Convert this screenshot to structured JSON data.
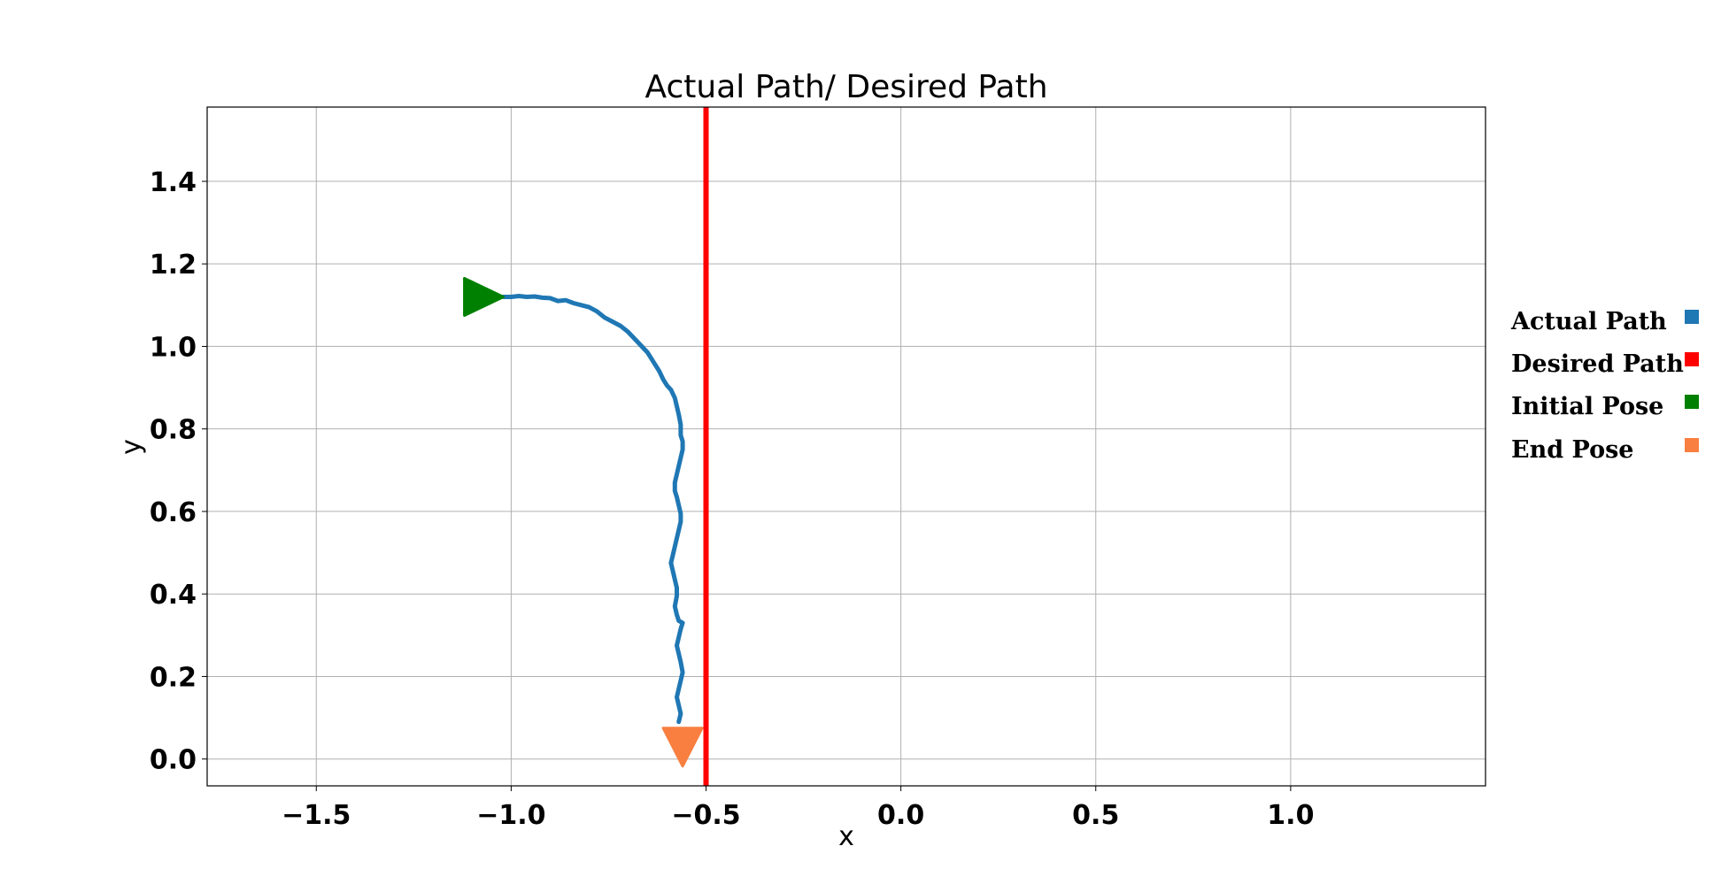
{
  "chart_data": {
    "type": "line",
    "title": "Actual Path/ Desired Path",
    "xlabel": "x",
    "ylabel": "y",
    "xlim": [
      -1.78,
      1.5
    ],
    "ylim": [
      -0.065,
      1.58
    ],
    "xticks": [
      -1.5,
      -1.0,
      -0.5,
      0.0,
      0.5,
      1.0
    ],
    "xtick_labels": [
      "−1.5",
      "−1.0",
      "−0.5",
      "0.0",
      "0.5",
      "1.0"
    ],
    "yticks": [
      0.0,
      0.2,
      0.4,
      0.6,
      0.8,
      1.0,
      1.2,
      1.4
    ],
    "ytick_labels": [
      "0.0",
      "0.2",
      "0.4",
      "0.6",
      "0.8",
      "1.0",
      "1.2",
      "1.4"
    ],
    "grid": true,
    "legend_position": "right",
    "series": [
      {
        "name": "Actual Path",
        "color": "#1f77b4",
        "x": [
          -1.02,
          -1.0,
          -0.98,
          -0.96,
          -0.94,
          -0.92,
          -0.9,
          -0.88,
          -0.86,
          -0.84,
          -0.82,
          -0.8,
          -0.78,
          -0.76,
          -0.74,
          -0.72,
          -0.7,
          -0.68,
          -0.665,
          -0.65,
          -0.64,
          -0.63,
          -0.62,
          -0.61,
          -0.6,
          -0.59,
          -0.58,
          -0.575,
          -0.57,
          -0.565,
          -0.565,
          -0.56,
          -0.56,
          -0.565,
          -0.57,
          -0.575,
          -0.58,
          -0.58,
          -0.575,
          -0.57,
          -0.565,
          -0.565,
          -0.57,
          -0.575,
          -0.58,
          -0.585,
          -0.59,
          -0.585,
          -0.58,
          -0.575,
          -0.575,
          -0.58,
          -0.575,
          -0.57,
          -0.56,
          -0.565,
          -0.57,
          -0.575,
          -0.57,
          -0.565,
          -0.56,
          -0.565,
          -0.57,
          -0.575,
          -0.57,
          -0.565,
          -0.57
        ],
        "y": [
          1.12,
          1.12,
          1.122,
          1.12,
          1.121,
          1.118,
          1.117,
          1.11,
          1.112,
          1.105,
          1.1,
          1.095,
          1.085,
          1.07,
          1.06,
          1.05,
          1.035,
          1.015,
          1.0,
          0.985,
          0.97,
          0.955,
          0.94,
          0.92,
          0.905,
          0.895,
          0.875,
          0.855,
          0.835,
          0.81,
          0.785,
          0.77,
          0.75,
          0.73,
          0.71,
          0.69,
          0.67,
          0.65,
          0.635,
          0.615,
          0.595,
          0.575,
          0.555,
          0.535,
          0.515,
          0.495,
          0.475,
          0.455,
          0.435,
          0.415,
          0.395,
          0.37,
          0.35,
          0.335,
          0.33,
          0.315,
          0.295,
          0.275,
          0.255,
          0.235,
          0.21,
          0.19,
          0.17,
          0.15,
          0.13,
          0.11,
          0.09
        ]
      },
      {
        "name": "Desired Path",
        "color": "#ff0000",
        "x": [
          -0.5,
          -0.5
        ],
        "y": [
          -0.065,
          1.58
        ]
      },
      {
        "name": "Initial Pose",
        "color": "#008000",
        "marker": "triangle-right",
        "x": [
          -1.07
        ],
        "y": [
          1.12
        ]
      },
      {
        "name": "End Pose",
        "color": "#f97f40",
        "marker": "triangle-down",
        "x": [
          -0.56
        ],
        "y": [
          0.03
        ]
      }
    ]
  }
}
